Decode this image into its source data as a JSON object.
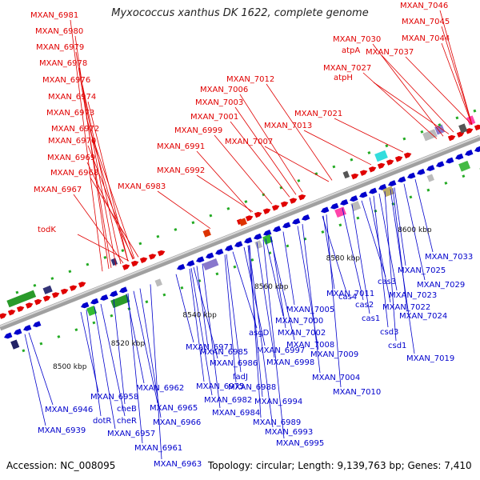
{
  "title": "Myxococcus xanthus DK 1622, complete genome",
  "accession": "Accession: NC_008095",
  "summary": "Topology: circular; Length: 9,139,763 bp; Genes: 7,410",
  "colors": {
    "forward": "#e00000",
    "reverse": "#0000cc",
    "backbone": "#9a9a9a"
  },
  "ticks": [
    {
      "label": "8500 kbp",
      "pos": 0.05
    },
    {
      "label": "8520 kbp",
      "pos": 0.18
    },
    {
      "label": "8540 kbp",
      "pos": 0.34
    },
    {
      "label": "8560 kbp",
      "pos": 0.5
    },
    {
      "label": "8580 kbp",
      "pos": 0.66
    },
    {
      "label": "8600 kbp",
      "pos": 0.82
    }
  ],
  "top_labels": [
    "MXAN_6981",
    "MXAN_6980",
    "MXAN_6979",
    "MXAN_6978",
    "MXAN_6976",
    "MXAN_6974",
    "MXAN_6973",
    "MXAN_6972",
    "MXAN_6970",
    "MXAN_6969",
    "MXAN_6968",
    "MXAN_6967",
    "todK",
    "MXAN_6983",
    "MXAN_6991",
    "MXAN_6992",
    "MXAN_6999",
    "MXAN_7001",
    "MXAN_7003",
    "MXAN_7006",
    "MXAN_7007",
    "MXAN_7012",
    "MXAN_7013",
    "MXAN_7021",
    "MXAN_7030",
    "atpA",
    "MXAN_7027",
    "atpH",
    "MXAN_7037",
    "MXAN_7046",
    "MXAN_7045",
    "MXAN_7044"
  ],
  "bottom_labels": [
    "MXAN_6946",
    "MXAN_6939",
    "MXAN_6958",
    "dotR",
    "cheB",
    "cheR",
    "MXAN_6957",
    "MXAN_6962",
    "MXAN_6961",
    "MXAN_6963",
    "MXAN_6965",
    "MXAN_6966",
    "MXAN_6971",
    "MXAN_6975",
    "MXAN_6985",
    "MXAN_6986",
    "MXAN_6982",
    "MXAN_6984",
    "fadJ",
    "MXAN_6988",
    "asgD",
    "MXAN_6997",
    "MXAN_6998",
    "MXAN_6994",
    "MXAN_6989",
    "MXAN_6993",
    "MXAN_6995",
    "MXAN_7000",
    "MXAN_7002",
    "MXAN_7005",
    "MXAN_7008",
    "MXAN_7009",
    "MXAN_7004",
    "MXAN_7010",
    "MXAN_7011",
    "cas4",
    "cas2",
    "cas1",
    "csd3",
    "csd1",
    "cas3",
    "MXAN_7022",
    "MXAN_7023",
    "MXAN_7024",
    "MXAN_7025",
    "MXAN_7019",
    "MXAN_7029",
    "MXAN_7033"
  ]
}
